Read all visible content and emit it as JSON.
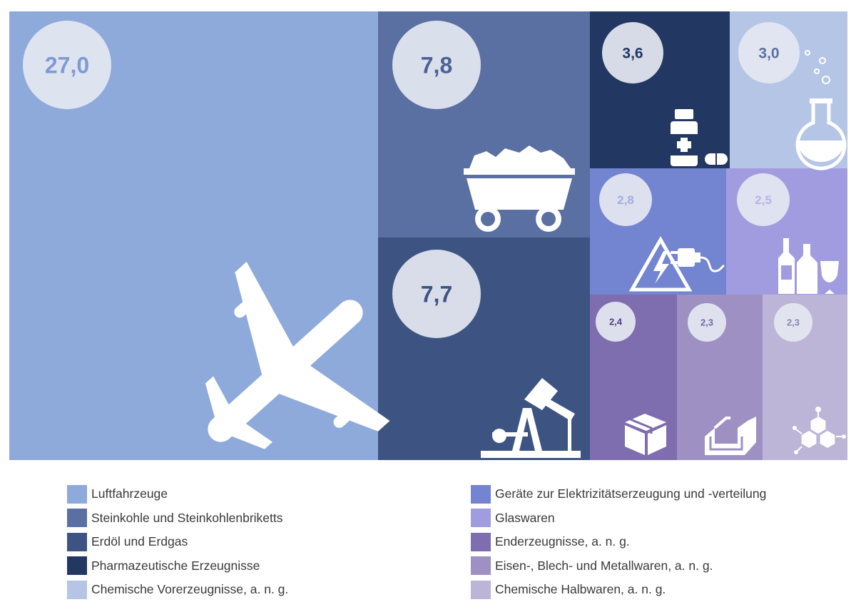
{
  "chart_data": {
    "type": "treemap",
    "title": "",
    "categories": [
      "Luftfahrzeuge",
      "Steinkohle und Steinkohlenbriketts",
      "Erdöl und Erdgas",
      "Pharmazeutische Erzeugnisse",
      "Chemische Vorerzeugnisse, a. n. g.",
      "Geräte zur Elektrizitätserzeugung und -verteilung",
      "Glaswaren",
      "Enderzeugnisse, a. n. g.",
      "Eisen-, Blech- und Metallwaren, a. n. g.",
      "Chemische Halbwaren, a. n. g."
    ],
    "values": [
      27.0,
      7.8,
      7.7,
      3.6,
      3.0,
      2.8,
      2.5,
      2.4,
      2.3,
      2.3
    ],
    "value_labels": [
      "27,0",
      "7,8",
      "7,7",
      "3,6",
      "3,0",
      "2,8",
      "2,5",
      "2,4",
      "2,3",
      "2,3"
    ],
    "colors": [
      "#8eaadb",
      "#5a6fa2",
      "#3d5482",
      "#223862",
      "#b4c5e6",
      "#7384d0",
      "#a19cdf",
      "#7e6daf",
      "#9e90c3",
      "#bcb5d7"
    ],
    "icons": [
      "airplane-icon",
      "coal-cart-icon",
      "oil-pump-icon",
      "medicine-bottle-icon",
      "flask-icon",
      "electricity-plug-icon",
      "bottles-glass-icon",
      "box-icon",
      "metal-profile-icon",
      "molecule-icon"
    ],
    "legend": {
      "left": [
        {
          "label": "Luftfahrzeuge",
          "color": "#8eaadb"
        },
        {
          "label": "Steinkohle und Steinkohlenbriketts",
          "color": "#5a6fa2"
        },
        {
          "label": "Erdöl und Erdgas",
          "color": "#3d5482"
        },
        {
          "label": "Pharmazeutische Erzeugnisse",
          "color": "#223862"
        },
        {
          "label": "Chemische Vorerzeugnisse, a. n. g.",
          "color": "#b4c5e6"
        }
      ],
      "right": [
        {
          "label": "Geräte zur Elektrizitätserzeugung und -verteilung",
          "color": "#7384d0"
        },
        {
          "label": "Glaswaren",
          "color": "#a19cdf"
        },
        {
          "label": "Enderzeugnisse, a. n. g.",
          "color": "#7e6daf"
        },
        {
          "label": "Eisen-, Blech- und Metallwaren, a. n. g.",
          "color": "#9e90c3"
        },
        {
          "label": "Chemische Halbwaren, a. n. g.",
          "color": "#bcb5d7"
        }
      ]
    }
  }
}
